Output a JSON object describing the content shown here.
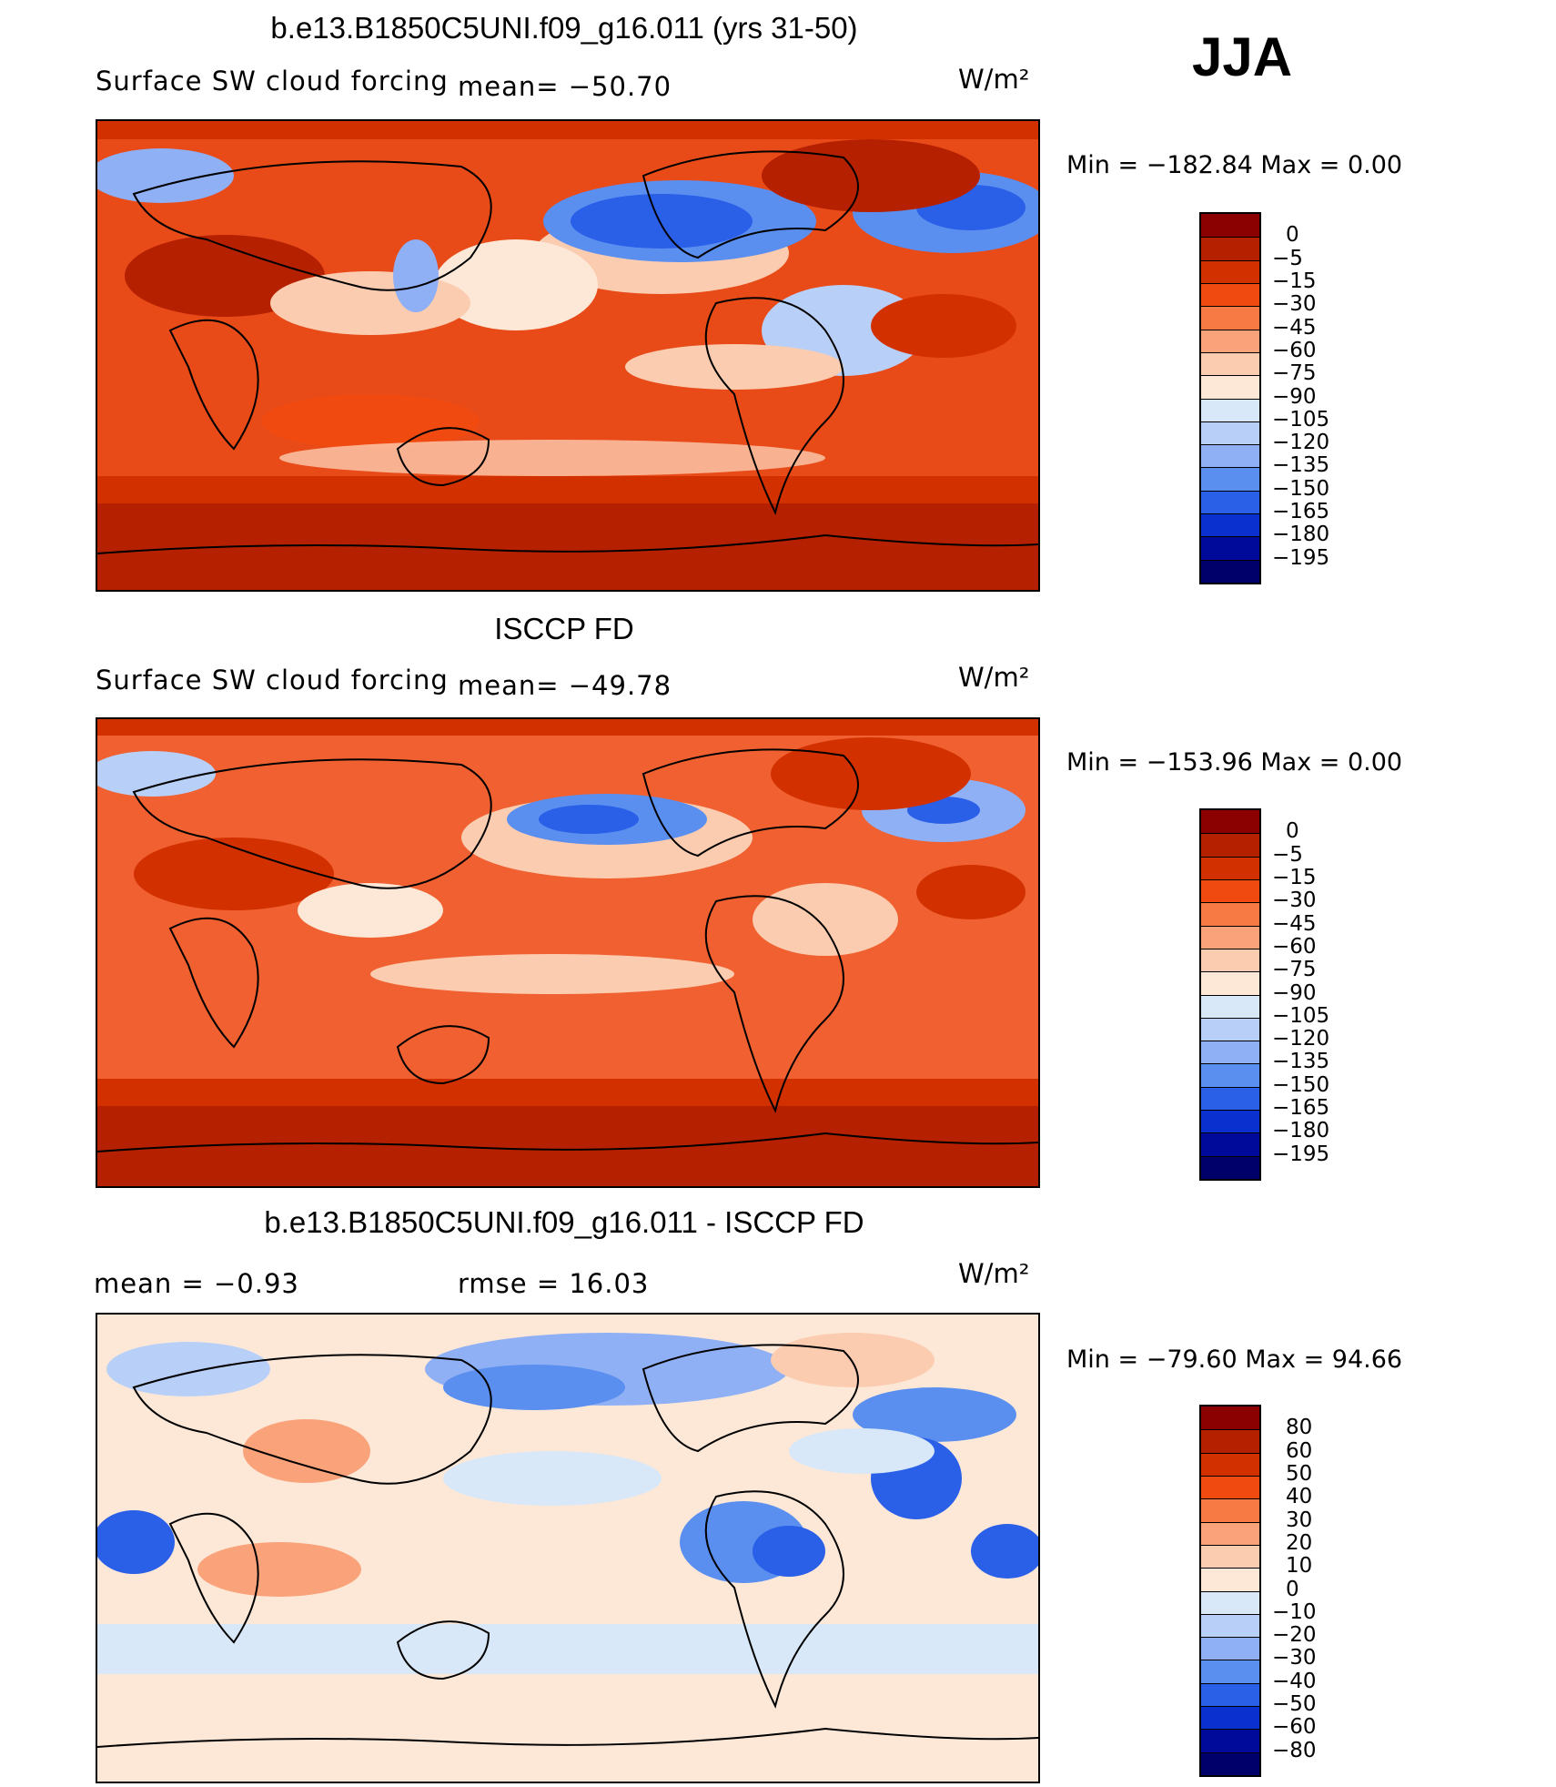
{
  "season": "JJA",
  "panels": [
    {
      "title": "b.e13.B1850C5UNI.f09_g16.011 (yrs 31-50)",
      "variable": "Surface SW cloud forcing",
      "stat": "mean= −50.70",
      "units": "W/m²",
      "minmax": "Min  =  −182.84  Max  =      0.00",
      "colorbar_labels": [
        "0",
        "−5",
        "−15",
        "−30",
        "−45",
        "−60",
        "−75",
        "−90",
        "−105",
        "−120",
        "−135",
        "−150",
        "−165",
        "−180",
        "−195"
      ]
    },
    {
      "title": "ISCCP FD",
      "variable": "Surface SW cloud forcing",
      "stat": "mean= −49.78",
      "units": "W/m²",
      "minmax": "Min  =  −153.96  Max  =      0.00",
      "colorbar_labels": [
        "0",
        "−5",
        "−15",
        "−30",
        "−45",
        "−60",
        "−75",
        "−90",
        "−105",
        "−120",
        "−135",
        "−150",
        "−165",
        "−180",
        "−195"
      ]
    },
    {
      "title": "b.e13.B1850C5UNI.f09_g16.011 - ISCCP FD",
      "mean_text": "mean  =    −0.93",
      "rmse_text": "rmse  =    16.03",
      "units": "W/m²",
      "minmax": "Min  =  −79.60  Max  =    94.66",
      "colorbar_labels": [
        "80",
        "60",
        "50",
        "40",
        "30",
        "20",
        "10",
        "0",
        "−10",
        "−20",
        "−30",
        "−40",
        "−50",
        "−60",
        "−80"
      ]
    }
  ],
  "chart_data": [
    {
      "type": "heatmap",
      "title": "b.e13.B1850C5UNI.f09_g16.011 (yrs 31-50)",
      "variable": "Surface SW cloud forcing",
      "units": "W/m2",
      "mean": -50.7,
      "min": -182.84,
      "max": 0.0,
      "levels": [
        0,
        -5,
        -15,
        -30,
        -45,
        -60,
        -75,
        -90,
        -105,
        -120,
        -135,
        -150,
        -165,
        -180,
        -195
      ],
      "colors": [
        "#8b0000",
        "#b52000",
        "#d33000",
        "#f04a10",
        "#f77a45",
        "#faa27a",
        "#fcccb0",
        "#fde8d8",
        "#d8e8f8",
        "#b8d0f8",
        "#8fb0f5",
        "#5a8ff0",
        "#2a5fe8",
        "#0a30d0",
        "#000a9a",
        "#00006a"
      ]
    },
    {
      "type": "heatmap",
      "title": "ISCCP FD",
      "variable": "Surface SW cloud forcing",
      "units": "W/m2",
      "mean": -49.78,
      "min": -153.96,
      "max": 0.0,
      "levels": [
        0,
        -5,
        -15,
        -30,
        -45,
        -60,
        -75,
        -90,
        -105,
        -120,
        -135,
        -150,
        -165,
        -180,
        -195
      ],
      "colors": [
        "#8b0000",
        "#b52000",
        "#d33000",
        "#f04a10",
        "#f77a45",
        "#faa27a",
        "#fcccb0",
        "#fde8d8",
        "#d8e8f8",
        "#b8d0f8",
        "#8fb0f5",
        "#5a8ff0",
        "#2a5fe8",
        "#0a30d0",
        "#000a9a",
        "#00006a"
      ]
    },
    {
      "type": "heatmap",
      "title": "b.e13.B1850C5UNI.f09_g16.011 - ISCCP FD",
      "units": "W/m2",
      "mean": -0.93,
      "rmse": 16.03,
      "min": -79.6,
      "max": 94.66,
      "levels": [
        80,
        60,
        50,
        40,
        30,
        20,
        10,
        0,
        -10,
        -20,
        -30,
        -40,
        -50,
        -60,
        -80
      ],
      "colors": [
        "#8b0000",
        "#b52000",
        "#d33000",
        "#f04a10",
        "#f77a45",
        "#faa27a",
        "#fcccb0",
        "#fde8d8",
        "#d8e8f8",
        "#b8d0f8",
        "#8fb0f5",
        "#5a8ff0",
        "#2a5fe8",
        "#0a30d0",
        "#000a9a",
        "#00006a"
      ]
    }
  ]
}
